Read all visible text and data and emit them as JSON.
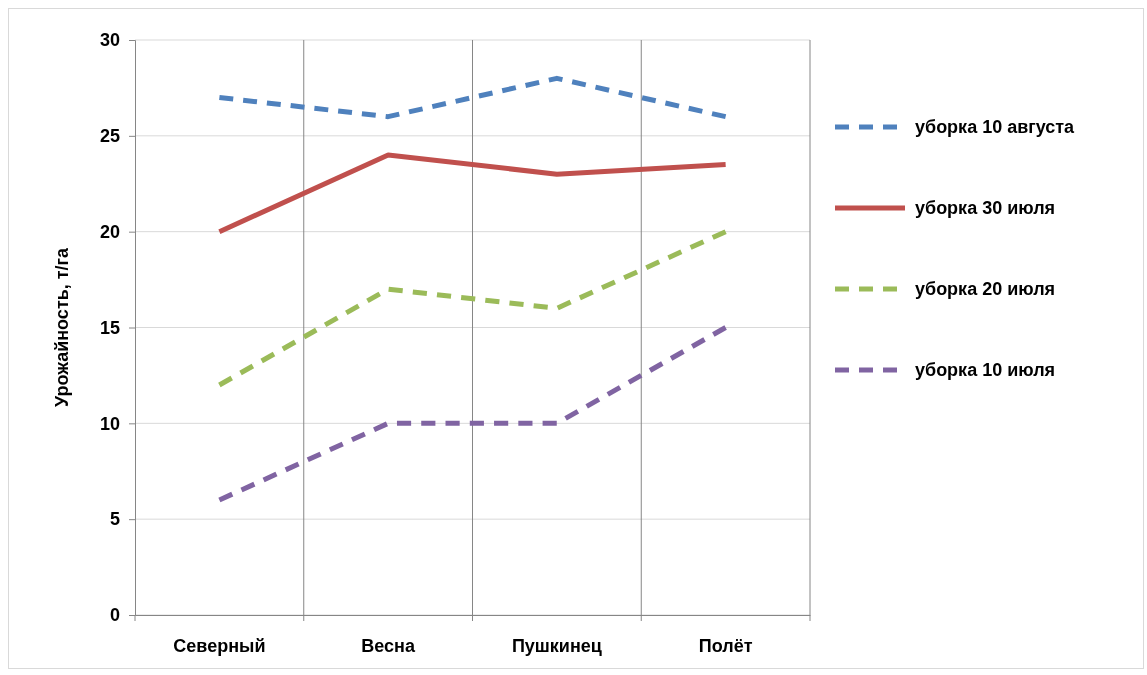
{
  "chart_data": {
    "type": "line",
    "ylabel": "Урожайность, т/га",
    "categories": [
      "Северный",
      "Весна",
      "Пушкинец",
      "Полёт"
    ],
    "ylim": [
      0,
      30
    ],
    "yticks": [
      0,
      5,
      10,
      15,
      20,
      25,
      30
    ],
    "grid": true,
    "legend": "right",
    "marker": "none",
    "series": [
      {
        "name": "уборка 10 августа",
        "color": "#4f81bd",
        "line_style": "dashed",
        "values": [
          27,
          26,
          28,
          26
        ]
      },
      {
        "name": "уборка 30 июля",
        "color": "#c0504d",
        "line_style": "solid",
        "values": [
          20,
          24,
          23,
          23.5
        ]
      },
      {
        "name": "уборка 20 июля",
        "color": "#9bbb59",
        "line_style": "dashed",
        "values": [
          12,
          17,
          16,
          20
        ]
      },
      {
        "name": "уборка 10 июля",
        "color": "#8064a2",
        "line_style": "dashed",
        "values": [
          6,
          10,
          10,
          15
        ]
      }
    ]
  }
}
